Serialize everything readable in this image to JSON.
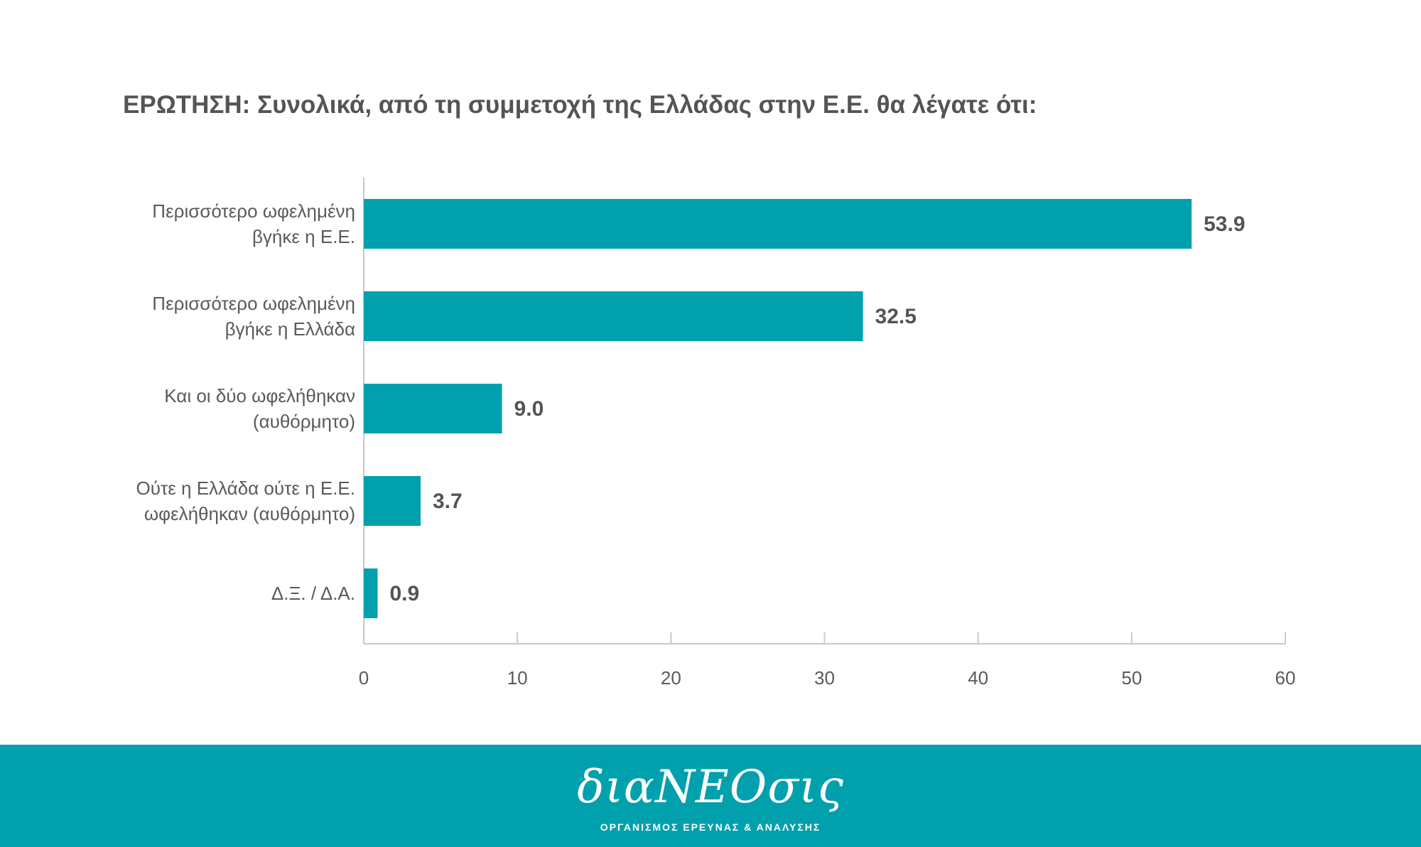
{
  "question": "ΕΡΩΤΗΣΗ: Συνολικά, από τη συμμετοχή της Ελλάδας στην Ε.Ε. θα λέγατε ότι:",
  "chart_data": {
    "type": "bar",
    "orientation": "horizontal",
    "categories": [
      "Περισσότερο ωφελημένη\nβγήκε η Ε.Ε.",
      "Περισσότερο ωφελημένη\nβγήκε η Ελλάδα",
      "Και οι δύο ωφελήθηκαν\n(αυθόρμητο)",
      "Ούτε η Ελλάδα ούτε η Ε.Ε.\nωφελήθηκαν (αυθόρμητο)",
      "Δ.Ξ. / Δ.Α."
    ],
    "values": [
      53.9,
      32.5,
      9.0,
      3.7,
      0.9
    ],
    "value_labels": [
      "53.9",
      "32.5",
      "9.0",
      "3.7",
      "0.9"
    ],
    "xlim": [
      0,
      60
    ],
    "xticks": [
      0,
      10,
      20,
      30,
      40,
      50,
      60
    ],
    "grid": false,
    "bar_color": "#00a0ad"
  },
  "footer": {
    "brand": "διαNEOσις",
    "tagline": "ΟΡΓΑΝΙΣΜΟΣ ΕΡΕΥΝΑΣ & ΑΝΑΛΥΣΗΣ",
    "background_color": "#00a0ad"
  }
}
